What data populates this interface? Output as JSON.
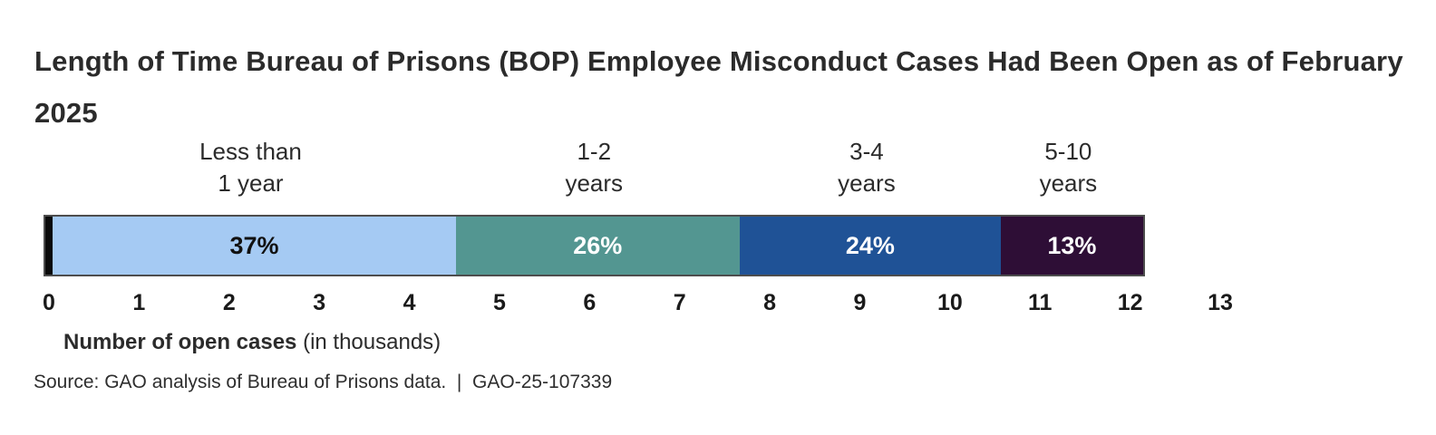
{
  "figure": {
    "title_lines": [
      "Length of Time Bureau of Prisons (BOP) Employee Misconduct Cases Had Been Open as of February",
      "2025"
    ]
  },
  "chart_data": {
    "type": "bar",
    "variant": "horizontal-stacked-single-bar",
    "title": "Length of Time Bureau of Prisons (BOP) Employee Misconduct Cases Had Been Open as of February 2025",
    "categories": [
      "Less than 1 year",
      "1-2 years",
      "3-4 years",
      "5-10 years"
    ],
    "category_label_lines": [
      [
        "Less than",
        "1 year"
      ],
      [
        "1-2",
        "years"
      ],
      [
        "3-4",
        "years"
      ],
      [
        "5-10",
        "years"
      ]
    ],
    "values_percent": [
      37,
      26,
      24,
      13
    ],
    "segment_labels": [
      "37%",
      "26%",
      "24%",
      "13%"
    ],
    "values_thousands_est": [
      4.5,
      3.1,
      2.9,
      1.6
    ],
    "total_open_cases_thousands_est": 12.1,
    "xlabel_bold": "Number of open cases",
    "xlabel_note": " (in thousands)",
    "x_ticks": [
      "0",
      "1",
      "2",
      "3",
      "4",
      "5",
      "6",
      "7",
      "8",
      "9",
      "10",
      "11",
      "12",
      "13"
    ],
    "xlim": [
      0,
      13
    ],
    "grid": false,
    "legend_position": "none",
    "segment_colors": [
      "#a5caf3",
      "#539691",
      "#1f5296",
      "#2e0e36"
    ],
    "segment_text_colors": [
      "#111111",
      "#ffffff",
      "#ffffff",
      "#ffffff"
    ],
    "bar_border_color": "#4d4d4d",
    "zero_marker_color": "#0a0a0a",
    "source": "Source: GAO analysis of Bureau of Prisons data.  |  GAO-25-107339"
  }
}
